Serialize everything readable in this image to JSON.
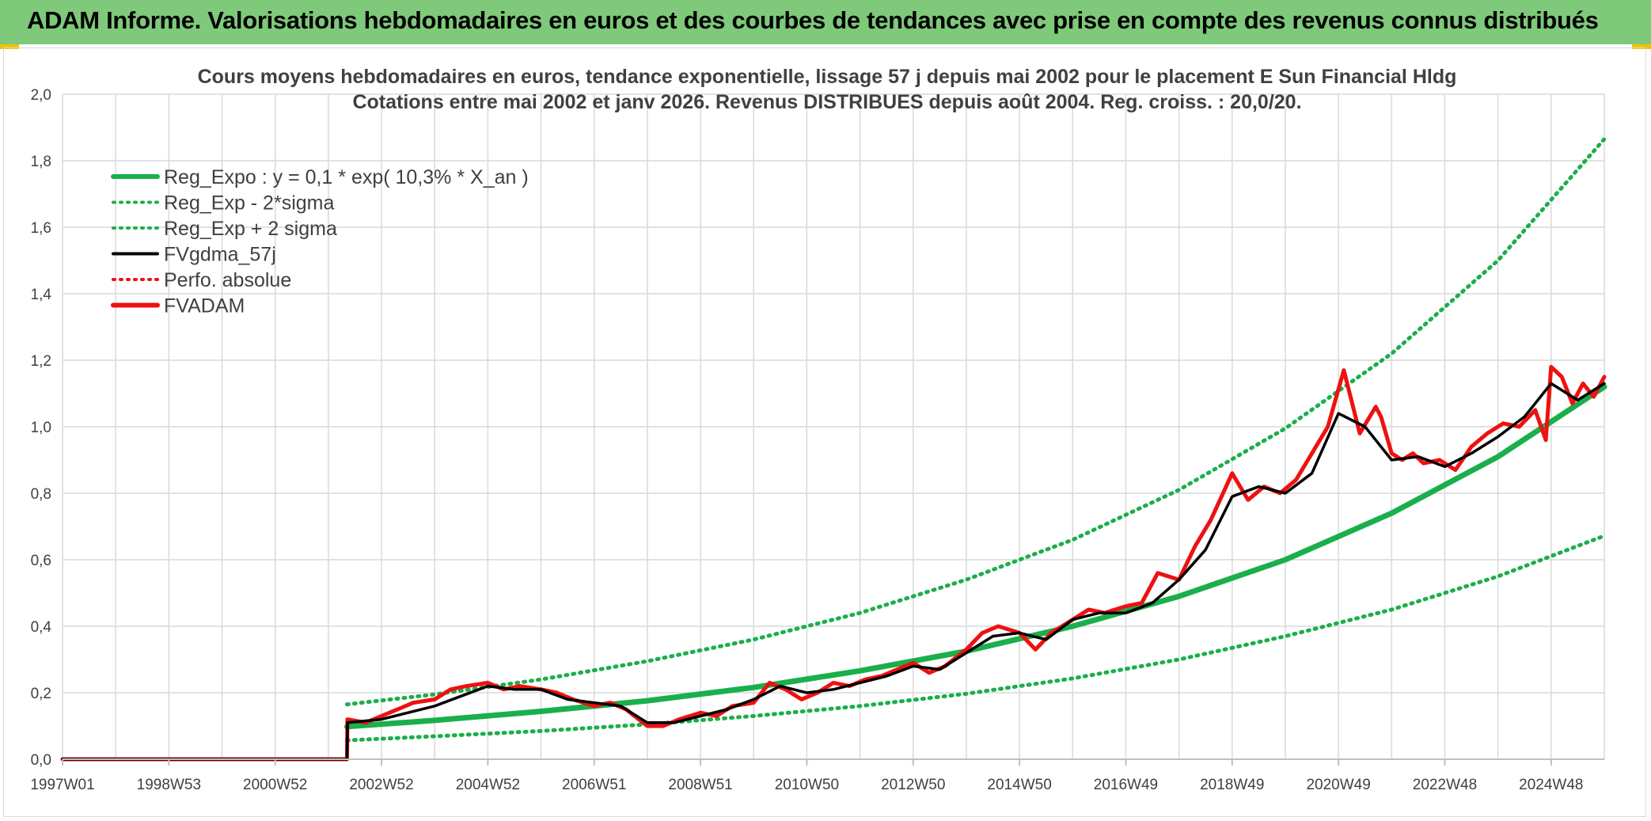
{
  "header": {
    "title": "ADAM Informe. Valorisations hebdomadaires en euros et des courbes de tendances avec prise en compte des revenus connus distribués"
  },
  "colors": {
    "banner": "#7ec97a",
    "reg_expo": "#1aaf4b",
    "sigma": "#1aaf4b",
    "fvgdma": "#000000",
    "fvadam": "#ee1111",
    "perfo": "#ee1111",
    "grid": "#d9d9d9",
    "text": "#404040"
  },
  "chart_data": {
    "type": "line",
    "title": [
      "Cours moyens hebdomadaires en euros, tendance exponentielle, lissage 57 j depuis mai 2002 pour le placement E Sun Financial Hldg",
      "Cotations entre mai 2002 et janv 2026. Revenus DISTRIBUES depuis août 2004. Reg. croiss. : 20,0/20."
    ],
    "xlabel": "",
    "ylabel": "",
    "x_range": [
      1997.0,
      2026.0
    ],
    "ylim": [
      0,
      2.0
    ],
    "y_ticks": [
      "0,0",
      "0,2",
      "0,4",
      "0,6",
      "0,8",
      "1,0",
      "1,2",
      "1,4",
      "1,6",
      "1,8",
      "2,0"
    ],
    "x_ticks": [
      {
        "label": "1997W01",
        "x": 1997.0
      },
      {
        "label": "1998W53",
        "x": 1999.0
      },
      {
        "label": "2000W52",
        "x": 2001.0
      },
      {
        "label": "2002W52",
        "x": 2003.0
      },
      {
        "label": "2004W52",
        "x": 2005.0
      },
      {
        "label": "2006W51",
        "x": 2007.0
      },
      {
        "label": "2008W51",
        "x": 2009.0
      },
      {
        "label": "2010W50",
        "x": 2011.0
      },
      {
        "label": "2012W50",
        "x": 2013.0
      },
      {
        "label": "2014W50",
        "x": 2015.0
      },
      {
        "label": "2016W49",
        "x": 2017.0
      },
      {
        "label": "2018W49",
        "x": 2019.0
      },
      {
        "label": "2020W49",
        "x": 2021.0
      },
      {
        "label": "2022W48",
        "x": 2023.0
      },
      {
        "label": "2024W48",
        "x": 2025.0
      }
    ],
    "legend": [
      {
        "key": "reg_expo",
        "label": "Reg_Expo : y = 0,1 * exp( 10,3% *  X_an )",
        "style": "solid-thick",
        "color": "#1aaf4b"
      },
      {
        "key": "reg_minus",
        "label": "Reg_Exp - 2*sigma",
        "style": "dotted",
        "color": "#1aaf4b"
      },
      {
        "key": "reg_plus",
        "label": "Reg_Exp + 2 sigma",
        "style": "dotted",
        "color": "#1aaf4b"
      },
      {
        "key": "fvgdma",
        "label": "FVgdma_57j",
        "style": "solid",
        "color": "#000000"
      },
      {
        "key": "perfo",
        "label": "Perfo. absolue",
        "style": "dotted",
        "color": "#ee1111"
      },
      {
        "key": "fvadam",
        "label": "FVADAM",
        "style": "solid-thick",
        "color": "#ee1111"
      }
    ],
    "series": [
      {
        "name": "Reg_Expo",
        "x": [
          2002.35,
          2004.0,
          2006.0,
          2008.0,
          2010.0,
          2012.0,
          2014.0,
          2016.0,
          2018.0,
          2020.0,
          2022.0,
          2024.0,
          2026.0
        ],
        "values": [
          0.098,
          0.117,
          0.144,
          0.176,
          0.216,
          0.266,
          0.325,
          0.4,
          0.49,
          0.6,
          0.74,
          0.91,
          1.12
        ]
      },
      {
        "name": "Reg_Exp - 2*sigma",
        "x": [
          2002.35,
          2004.0,
          2006.0,
          2008.0,
          2010.0,
          2012.0,
          2014.0,
          2016.0,
          2018.0,
          2020.0,
          2022.0,
          2024.0,
          2026.0
        ],
        "values": [
          0.057,
          0.069,
          0.085,
          0.105,
          0.13,
          0.16,
          0.197,
          0.243,
          0.3,
          0.37,
          0.45,
          0.55,
          0.672
        ]
      },
      {
        "name": "Reg_Exp + 2 sigma",
        "x": [
          2002.35,
          2004.0,
          2006.0,
          2008.0,
          2010.0,
          2012.0,
          2014.0,
          2016.0,
          2018.0,
          2020.0,
          2022.0,
          2024.0,
          2026.0
        ],
        "values": [
          0.165,
          0.195,
          0.24,
          0.295,
          0.36,
          0.44,
          0.54,
          0.66,
          0.81,
          0.995,
          1.22,
          1.5,
          1.865
        ]
      },
      {
        "name": "FVgdma_57j",
        "x": [
          1997.0,
          2002.35,
          2002.36,
          2003.0,
          2003.5,
          2004.0,
          2004.5,
          2005.0,
          2005.5,
          2006.0,
          2006.5,
          2007.0,
          2007.5,
          2008.0,
          2008.5,
          2009.0,
          2009.5,
          2010.0,
          2010.5,
          2011.0,
          2011.5,
          2012.0,
          2012.5,
          2013.0,
          2013.5,
          2014.0,
          2014.5,
          2015.0,
          2015.5,
          2016.0,
          2016.5,
          2017.0,
          2017.5,
          2018.0,
          2018.5,
          2019.0,
          2019.5,
          2020.0,
          2020.5,
          2021.0,
          2021.5,
          2022.0,
          2022.5,
          2023.0,
          2023.5,
          2024.0,
          2024.5,
          2025.0,
          2025.5,
          2026.0
        ],
        "values": [
          0.0,
          0.0,
          0.11,
          0.12,
          0.14,
          0.16,
          0.19,
          0.22,
          0.21,
          0.21,
          0.18,
          0.17,
          0.16,
          0.11,
          0.11,
          0.13,
          0.15,
          0.18,
          0.22,
          0.2,
          0.21,
          0.23,
          0.25,
          0.28,
          0.27,
          0.32,
          0.37,
          0.38,
          0.36,
          0.42,
          0.44,
          0.44,
          0.47,
          0.54,
          0.63,
          0.79,
          0.82,
          0.8,
          0.86,
          1.04,
          1.0,
          0.9,
          0.91,
          0.88,
          0.92,
          0.97,
          1.03,
          1.13,
          1.08,
          1.13
        ]
      },
      {
        "name": "FVADAM",
        "x": [
          1997.0,
          2002.35,
          2002.36,
          2002.7,
          2003.0,
          2003.3,
          2003.6,
          2004.0,
          2004.3,
          2004.6,
          2005.0,
          2005.3,
          2005.6,
          2006.0,
          2006.3,
          2006.6,
          2007.0,
          2007.3,
          2007.6,
          2008.0,
          2008.3,
          2008.6,
          2009.0,
          2009.3,
          2009.6,
          2010.0,
          2010.3,
          2010.6,
          2010.9,
          2011.2,
          2011.5,
          2011.8,
          2012.1,
          2012.4,
          2012.7,
          2013.0,
          2013.3,
          2013.6,
          2014.0,
          2014.3,
          2014.6,
          2015.0,
          2015.3,
          2015.6,
          2016.0,
          2016.3,
          2016.6,
          2017.0,
          2017.3,
          2017.6,
          2018.0,
          2018.3,
          2018.6,
          2019.0,
          2019.3,
          2019.6,
          2019.9,
          2020.2,
          2020.5,
          2020.8,
          2021.1,
          2021.4,
          2021.7,
          2021.8,
          2022.0,
          2022.2,
          2022.4,
          2022.6,
          2022.9,
          2023.2,
          2023.5,
          2023.8,
          2024.1,
          2024.4,
          2024.7,
          2024.9,
          2025.0,
          2025.2,
          2025.4,
          2025.6,
          2025.8,
          2026.0
        ],
        "values": [
          0.0,
          0.0,
          0.12,
          0.11,
          0.13,
          0.15,
          0.17,
          0.18,
          0.21,
          0.22,
          0.23,
          0.21,
          0.22,
          0.21,
          0.2,
          0.18,
          0.16,
          0.17,
          0.15,
          0.1,
          0.1,
          0.12,
          0.14,
          0.13,
          0.16,
          0.17,
          0.23,
          0.21,
          0.18,
          0.2,
          0.23,
          0.22,
          0.24,
          0.25,
          0.27,
          0.29,
          0.26,
          0.28,
          0.33,
          0.38,
          0.4,
          0.38,
          0.33,
          0.38,
          0.42,
          0.45,
          0.44,
          0.46,
          0.47,
          0.56,
          0.54,
          0.64,
          0.72,
          0.86,
          0.78,
          0.82,
          0.8,
          0.84,
          0.92,
          1.0,
          1.17,
          0.98,
          1.06,
          1.03,
          0.92,
          0.9,
          0.92,
          0.89,
          0.9,
          0.87,
          0.94,
          0.98,
          1.01,
          1.0,
          1.05,
          0.96,
          1.18,
          1.15,
          1.07,
          1.13,
          1.09,
          1.15
        ]
      }
    ]
  }
}
